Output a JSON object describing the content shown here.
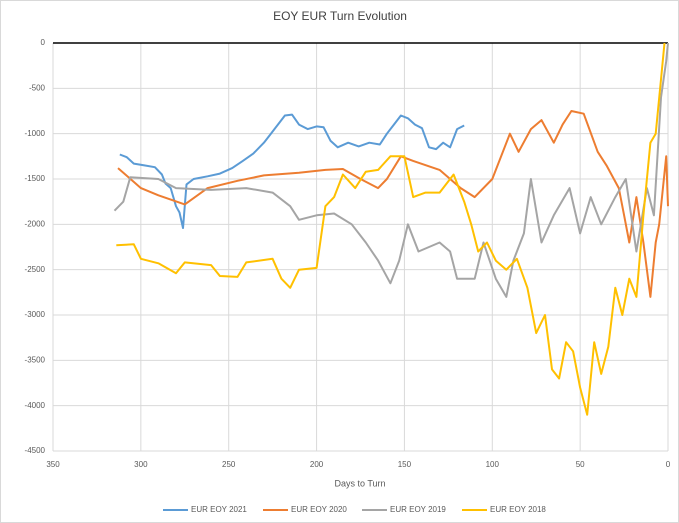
{
  "chart_data": {
    "type": "line",
    "title": "EOY EUR Turn Evolution",
    "x_label": "Days to Turn",
    "xlim": [
      350,
      0
    ],
    "xticks": [
      350,
      300,
      250,
      200,
      150,
      100,
      50,
      0
    ],
    "ylim": [
      -4500,
      0
    ],
    "yticks": [
      0,
      -500,
      -1000,
      -1500,
      -2000,
      -2500,
      -3000,
      -3500,
      -4000,
      -4500
    ],
    "grid": true,
    "legend": "bottom",
    "series": [
      {
        "name": "EUR EOY 2021",
        "color": "#5b9bd5",
        "x": [
          312,
          308,
          304,
          298,
          292,
          288,
          286,
          283,
          280,
          278,
          276,
          274,
          270,
          262,
          255,
          248,
          242,
          236,
          230,
          226,
          222,
          218,
          214,
          210,
          205,
          200,
          196,
          192,
          188,
          182,
          176,
          170,
          164,
          160,
          156,
          152,
          148,
          144,
          140,
          136,
          132,
          128,
          124,
          120,
          116
        ],
        "values": [
          -1230,
          -1260,
          -1330,
          -1350,
          -1370,
          -1450,
          -1550,
          -1600,
          -1800,
          -1870,
          -2040,
          -1560,
          -1500,
          -1470,
          -1440,
          -1380,
          -1300,
          -1220,
          -1100,
          -1000,
          -900,
          -800,
          -790,
          -900,
          -950,
          -920,
          -930,
          -1080,
          -1150,
          -1100,
          -1140,
          -1100,
          -1120,
          -1000,
          -900,
          -800,
          -830,
          -900,
          -940,
          -1150,
          -1170,
          -1100,
          -1150,
          -950,
          -910
        ]
      },
      {
        "name": "EUR EOY 2020",
        "color": "#ed7d31",
        "x": [
          313,
          300,
          290,
          275,
          262,
          245,
          230,
          210,
          195,
          185,
          175,
          165,
          160,
          152,
          145,
          130,
          118,
          110,
          100,
          90,
          85,
          78,
          72,
          65,
          60,
          55,
          48,
          40,
          35,
          28,
          25,
          22,
          18,
          14,
          10,
          7,
          5,
          1,
          0
        ],
        "values": [
          -1380,
          -1600,
          -1680,
          -1780,
          -1600,
          -1520,
          -1460,
          -1430,
          -1400,
          -1390,
          -1500,
          -1600,
          -1500,
          -1250,
          -1300,
          -1400,
          -1600,
          -1700,
          -1500,
          -1000,
          -1200,
          -950,
          -850,
          -1100,
          -900,
          -750,
          -780,
          -1200,
          -1350,
          -1600,
          -1900,
          -2200,
          -1700,
          -2200,
          -2800,
          -2200,
          -2000,
          -1250,
          -1800
        ]
      },
      {
        "name": "EUR EOY 2019",
        "color": "#a5a5a5",
        "x": [
          315,
          310,
          306,
          290,
          280,
          260,
          240,
          225,
          215,
          210,
          200,
          190,
          180,
          172,
          165,
          158,
          153,
          148,
          142,
          130,
          124,
          120,
          110,
          105,
          98,
          92,
          88,
          82,
          78,
          72,
          65,
          56,
          50,
          44,
          38,
          30,
          24,
          18,
          12,
          8,
          4,
          1,
          0
        ],
        "values": [
          -1850,
          -1750,
          -1480,
          -1500,
          -1600,
          -1620,
          -1600,
          -1650,
          -1800,
          -1950,
          -1900,
          -1880,
          -2000,
          -2200,
          -2400,
          -2650,
          -2400,
          -2000,
          -2300,
          -2200,
          -2300,
          -2600,
          -2600,
          -2200,
          -2600,
          -2800,
          -2400,
          -2100,
          -1500,
          -2200,
          -1900,
          -1600,
          -2100,
          -1700,
          -2000,
          -1700,
          -1500,
          -2300,
          -1600,
          -1900,
          -600,
          -200,
          0
        ]
      },
      {
        "name": "EUR EOY 2018",
        "color": "#ffc000",
        "x": [
          314,
          304,
          300,
          290,
          280,
          275,
          260,
          255,
          245,
          240,
          225,
          220,
          215,
          210,
          200,
          195,
          190,
          185,
          178,
          172,
          165,
          158,
          150,
          145,
          138,
          130,
          122,
          116,
          112,
          108,
          103,
          98,
          92,
          86,
          80,
          75,
          70,
          66,
          62,
          58,
          54,
          50,
          46,
          42,
          38,
          34,
          30,
          26,
          22,
          18,
          14,
          10,
          7,
          4,
          2
        ],
        "values": [
          -2230,
          -2220,
          -2380,
          -2430,
          -2540,
          -2420,
          -2450,
          -2570,
          -2580,
          -2420,
          -2380,
          -2600,
          -2700,
          -2500,
          -2480,
          -1800,
          -1700,
          -1450,
          -1600,
          -1420,
          -1400,
          -1250,
          -1250,
          -1700,
          -1650,
          -1650,
          -1450,
          -1750,
          -2000,
          -2300,
          -2200,
          -2400,
          -2500,
          -2380,
          -2700,
          -3200,
          -3000,
          -3600,
          -3700,
          -3300,
          -3400,
          -3800,
          -4100,
          -3300,
          -3650,
          -3350,
          -2700,
          -3000,
          -2600,
          -2800,
          -1900,
          -1100,
          -1000,
          -400,
          0
        ]
      }
    ]
  }
}
